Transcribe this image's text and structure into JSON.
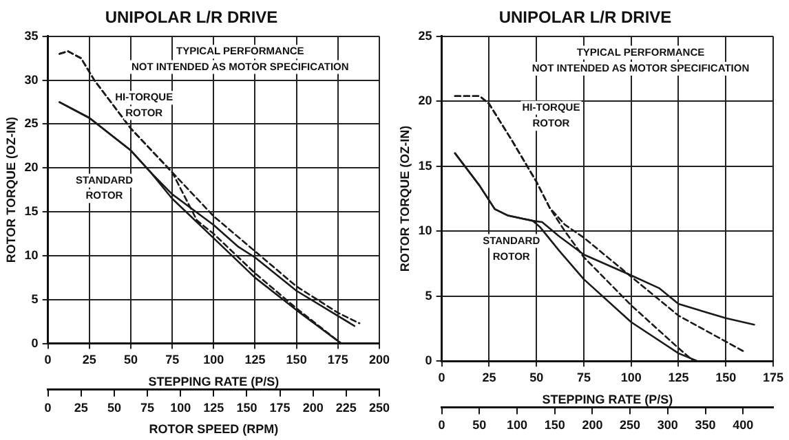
{
  "chart_data": [
    {
      "type": "line",
      "title": "UNIPOLAR L/R DRIVE",
      "xlabel": "STEPPING RATE (P/S)",
      "ylabel": "ROTOR TORQUE (OZ-IN)",
      "x2label": "ROTOR SPEED (RPM)",
      "xlim": [
        0,
        200
      ],
      "xticks": [
        0,
        25,
        50,
        75,
        100,
        125,
        150,
        175,
        200
      ],
      "ylim": [
        0,
        35
      ],
      "yticks": [
        0,
        5,
        10,
        15,
        20,
        25,
        30,
        35
      ],
      "x2lim": [
        0,
        250
      ],
      "x2ticks": [
        0,
        25,
        50,
        75,
        100,
        125,
        150,
        175,
        200,
        225,
        250
      ],
      "grid": true,
      "legend": false,
      "marker": "none",
      "series": [
        {
          "color": "#1a1a1a",
          "line_style": "dashed",
          "x": [
            7,
            12,
            20,
            28,
            50,
            75,
            90,
            100,
            125,
            150,
            175,
            188
          ],
          "values": [
            33,
            33.3,
            32.5,
            30,
            24.5,
            19.5,
            16.5,
            14.5,
            10.5,
            6.5,
            3.5,
            2.3
          ]
        },
        {
          "color": "#1a1a1a",
          "line_style": "dashed",
          "x": [
            7,
            12,
            20,
            28,
            50,
            75,
            90,
            100,
            125,
            150,
            177
          ],
          "values": [
            33,
            33.3,
            32.5,
            30,
            24.5,
            19.5,
            14,
            12.5,
            8,
            4,
            0
          ]
        },
        {
          "color": "#1a1a1a",
          "line_style": "solid",
          "x": [
            7,
            25,
            50,
            62,
            75,
            100,
            115,
            125,
            150,
            185
          ],
          "values": [
            27.5,
            25.7,
            22,
            19.5,
            17,
            13.5,
            11,
            9.8,
            6,
            2
          ]
        },
        {
          "color": "#1a1a1a",
          "line_style": "solid",
          "x": [
            7,
            25,
            50,
            62,
            75,
            100,
            125,
            150,
            177
          ],
          "values": [
            27.5,
            25.7,
            22,
            19.5,
            16.5,
            12,
            7.5,
            3.8,
            0
          ]
        }
      ],
      "annotations": [
        "TYPICAL PERFORMANCE",
        "NOT INTENDED AS MOTOR SPECIFICATION",
        "HI-TORQUE",
        "ROTOR",
        "STANDARD",
        "ROTOR"
      ]
    },
    {
      "type": "line",
      "title": "UNIPOLAR L/R DRIVE",
      "xlabel": "STEPPING RATE (P/S)",
      "ylabel": "ROTOR TORQUE (OZ-IN)",
      "xlim": [
        0,
        175
      ],
      "xticks": [
        0,
        25,
        50,
        75,
        100,
        125,
        150,
        175
      ],
      "ylim": [
        0,
        25
      ],
      "yticks": [
        0,
        5,
        10,
        15,
        20,
        25
      ],
      "x2lim": [
        0,
        440
      ],
      "x2ticks": [
        0,
        50,
        100,
        150,
        200,
        250,
        300,
        350,
        400
      ],
      "grid": true,
      "legend": false,
      "marker": "none",
      "series": [
        {
          "color": "#1a1a1a",
          "line_style": "dashed",
          "x": [
            7,
            20,
            25,
            37,
            50,
            57,
            65,
            75,
            100,
            125,
            160
          ],
          "values": [
            20.4,
            20.4,
            19.8,
            17,
            13.8,
            11.8,
            10.5,
            9.5,
            6.5,
            3.5,
            0.7
          ]
        },
        {
          "color": "#1a1a1a",
          "line_style": "dashed",
          "x": [
            7,
            20,
            25,
            37,
            50,
            57,
            65,
            75,
            100,
            125,
            133
          ],
          "values": [
            20.4,
            20.4,
            19.8,
            17,
            13.8,
            11.8,
            10,
            8,
            4.3,
            1,
            0
          ]
        },
        {
          "color": "#1a1a1a",
          "line_style": "solid",
          "x": [
            7,
            20,
            28,
            35,
            48,
            53,
            62,
            75,
            100,
            115,
            125,
            150,
            165
          ],
          "values": [
            16,
            13.5,
            11.7,
            11.2,
            10.8,
            10.7,
            9.6,
            8.2,
            6.6,
            5.6,
            4.4,
            3.3,
            2.8
          ]
        },
        {
          "color": "#1a1a1a",
          "line_style": "solid",
          "x": [
            7,
            20,
            28,
            35,
            48,
            52,
            62,
            75,
            100,
            125,
            135
          ],
          "values": [
            16,
            13.5,
            11.7,
            11.2,
            10.8,
            10.3,
            8.5,
            6.3,
            3,
            0.6,
            0
          ]
        }
      ],
      "annotations": [
        "TYPICAL PERFORMANCE",
        "NOT INTENDED AS MOTOR SPECIFICATION",
        "HI-TORQUE",
        "ROTOR",
        "STANDARD",
        "ROTOR"
      ]
    }
  ]
}
